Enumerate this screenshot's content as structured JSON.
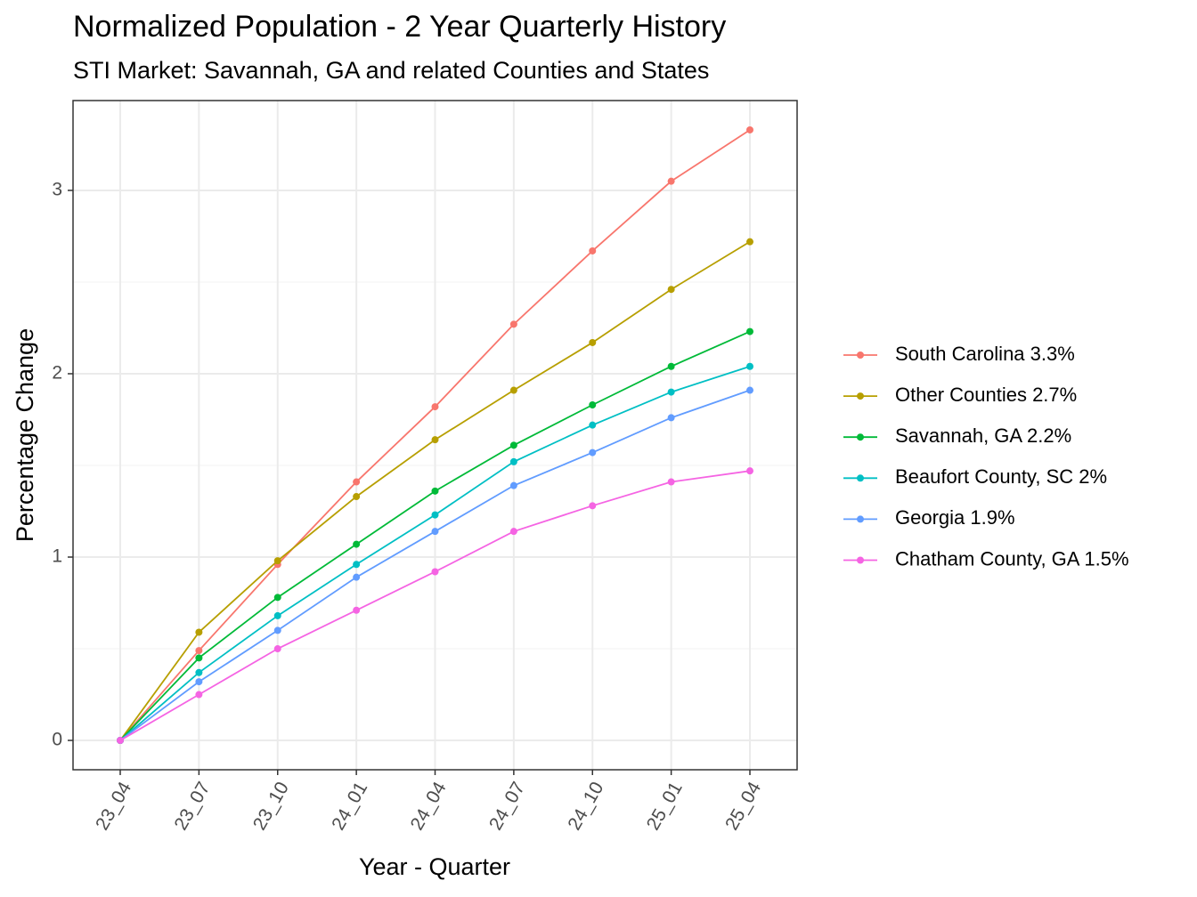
{
  "chart_data": {
    "type": "line",
    "title": "Normalized Population - 2 Year Quarterly History",
    "subtitle": "STI Market: Savannah, GA and related Counties and States",
    "x_label": "Year - Quarter",
    "y_label": "Percentage Change",
    "categories": [
      "23_04",
      "23_07",
      "23_10",
      "24_01",
      "24_04",
      "24_07",
      "24_10",
      "25_01",
      "25_04"
    ],
    "ylim": [
      -0.16,
      3.49
    ],
    "yticks": [
      0,
      1,
      2,
      3
    ],
    "y_minor_ticks": [
      0.5,
      1.5,
      2.5
    ],
    "grid": true,
    "legend": "right",
    "series": [
      {
        "name": "South Carolina 3.3%",
        "color": "#F8766D",
        "values": [
          0,
          0.49,
          0.96,
          1.41,
          1.82,
          2.27,
          2.67,
          3.05,
          3.33
        ]
      },
      {
        "name": "Other Counties 2.7%",
        "color": "#B79F00",
        "values": [
          0,
          0.59,
          0.98,
          1.33,
          1.64,
          1.91,
          2.17,
          2.46,
          2.72
        ]
      },
      {
        "name": "Savannah, GA 2.2%",
        "color": "#00BA38",
        "values": [
          0,
          0.45,
          0.78,
          1.07,
          1.36,
          1.61,
          1.83,
          2.04,
          2.23
        ]
      },
      {
        "name": "Beaufort County, SC 2%",
        "color": "#00BFC4",
        "values": [
          0,
          0.37,
          0.68,
          0.96,
          1.23,
          1.52,
          1.72,
          1.9,
          2.04
        ]
      },
      {
        "name": "Georgia 1.9%",
        "color": "#619CFF",
        "values": [
          0,
          0.32,
          0.6,
          0.89,
          1.14,
          1.39,
          1.57,
          1.76,
          1.91
        ]
      },
      {
        "name": "Chatham County, GA 1.5%",
        "color": "#F564E3",
        "values": [
          0,
          0.25,
          0.5,
          0.71,
          0.92,
          1.14,
          1.28,
          1.41,
          1.47
        ]
      }
    ]
  }
}
